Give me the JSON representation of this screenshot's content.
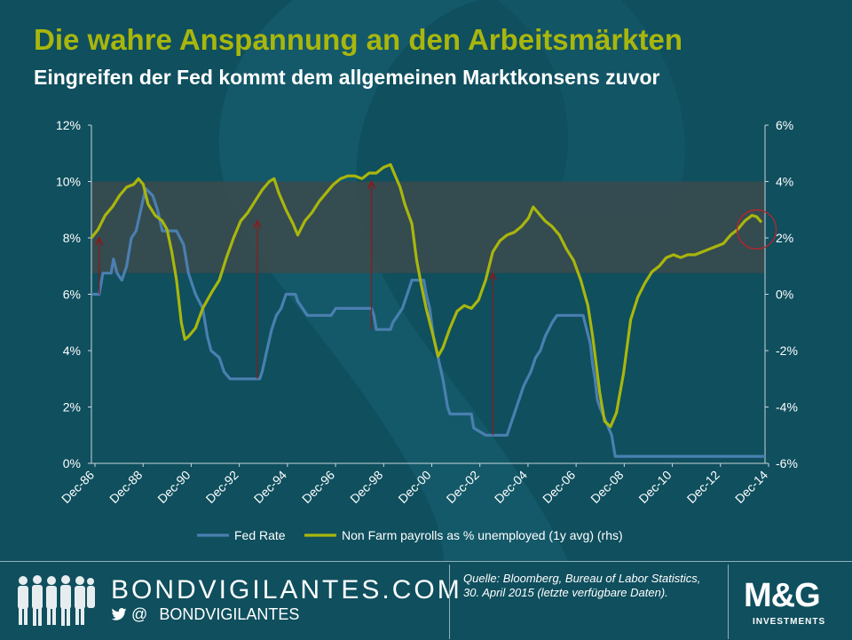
{
  "header": {
    "title": "Die wahre Anspannung an den Arbeitsmärkten",
    "subtitle": "Eingreifen der Fed kommt dem allgemeinen Marktkonsens zuvor"
  },
  "footer": {
    "brand": "BONDVIGILANTES.COM",
    "social_symbol": "@",
    "social_handle": "BONDVIGILANTES",
    "source": "Quelle: Bloomberg, Bureau of Labor Statistics, 30. April 2015 (letzte verfügbare Daten).",
    "logo": "M&G",
    "logo_sub": "INVESTMENTS"
  },
  "colors": {
    "background": "#0f4f5e",
    "fed_rate": "#4a7fb0",
    "payrolls": "#a9b60c",
    "band": "#3b4a4e",
    "arrow": "#8b1a1a",
    "circle": "#c0222a"
  },
  "chart_data": {
    "type": "line",
    "x_tick_labels": [
      "Dec-86",
      "Dec-88",
      "Dec-90",
      "Dec-92",
      "Dec-94",
      "Dec-96",
      "Dec-98",
      "Dec-00",
      "Dec-02",
      "Dec-04",
      "Dec-06",
      "Dec-08",
      "Dec-10",
      "Dec-12",
      "Dec-14"
    ],
    "x_range": [
      1986.92,
      2015.25
    ],
    "y_left": {
      "range": [
        0,
        12
      ],
      "ticks": [
        "0%",
        "2%",
        "4%",
        "6%",
        "8%",
        "10%",
        "12%"
      ]
    },
    "y_right": {
      "range": [
        -6,
        6
      ],
      "ticks": [
        "-6%",
        "-4%",
        "-2%",
        "0%",
        "2%",
        "4%",
        "6%"
      ]
    },
    "band_right_axis": [
      0.75,
      4.0
    ],
    "legend": [
      "Fed Rate",
      "Non Farm payrolls as % unemployed (1y avg) (rhs)"
    ],
    "legend_position": "bottom",
    "series": [
      {
        "name": "Fed Rate",
        "axis": "left",
        "points": [
          [
            1986.92,
            6.0
          ],
          [
            1987.25,
            6.0
          ],
          [
            1987.4,
            6.75
          ],
          [
            1987.75,
            6.75
          ],
          [
            1987.85,
            7.25
          ],
          [
            1988.0,
            6.75
          ],
          [
            1988.2,
            6.5
          ],
          [
            1988.4,
            7.0
          ],
          [
            1988.6,
            8.0
          ],
          [
            1988.8,
            8.25
          ],
          [
            1989.0,
            9.0
          ],
          [
            1989.2,
            9.75
          ],
          [
            1989.5,
            9.5
          ],
          [
            1989.7,
            9.0
          ],
          [
            1989.9,
            8.25
          ],
          [
            1990.5,
            8.25
          ],
          [
            1990.8,
            7.75
          ],
          [
            1991.0,
            6.75
          ],
          [
            1991.3,
            6.0
          ],
          [
            1991.6,
            5.5
          ],
          [
            1991.8,
            4.5
          ],
          [
            1991.95,
            4.0
          ],
          [
            1992.3,
            3.75
          ],
          [
            1992.5,
            3.25
          ],
          [
            1992.75,
            3.0
          ],
          [
            1993.0,
            3.0
          ],
          [
            1994.0,
            3.0
          ],
          [
            1994.1,
            3.25
          ],
          [
            1994.3,
            4.0
          ],
          [
            1994.5,
            4.75
          ],
          [
            1994.7,
            5.25
          ],
          [
            1994.9,
            5.5
          ],
          [
            1995.1,
            6.0
          ],
          [
            1995.5,
            6.0
          ],
          [
            1995.6,
            5.75
          ],
          [
            1996.0,
            5.25
          ],
          [
            1997.0,
            5.25
          ],
          [
            1997.2,
            5.5
          ],
          [
            1998.7,
            5.5
          ],
          [
            1998.8,
            5.25
          ],
          [
            1998.9,
            4.75
          ],
          [
            1999.5,
            4.75
          ],
          [
            1999.6,
            5.0
          ],
          [
            1999.8,
            5.25
          ],
          [
            2000.0,
            5.5
          ],
          [
            2000.2,
            6.0
          ],
          [
            2000.4,
            6.5
          ],
          [
            2000.9,
            6.5
          ],
          [
            2001.0,
            6.0
          ],
          [
            2001.15,
            5.5
          ],
          [
            2001.3,
            4.5
          ],
          [
            2001.5,
            3.75
          ],
          [
            2001.7,
            3.0
          ],
          [
            2001.8,
            2.5
          ],
          [
            2001.9,
            2.0
          ],
          [
            2002.0,
            1.75
          ],
          [
            2002.9,
            1.75
          ],
          [
            2003.0,
            1.25
          ],
          [
            2003.5,
            1.0
          ],
          [
            2004.4,
            1.0
          ],
          [
            2004.5,
            1.25
          ],
          [
            2004.7,
            1.75
          ],
          [
            2004.9,
            2.25
          ],
          [
            2005.1,
            2.75
          ],
          [
            2005.4,
            3.25
          ],
          [
            2005.6,
            3.75
          ],
          [
            2005.8,
            4.0
          ],
          [
            2006.0,
            4.5
          ],
          [
            2006.3,
            5.0
          ],
          [
            2006.5,
            5.25
          ],
          [
            2007.6,
            5.25
          ],
          [
            2007.75,
            4.75
          ],
          [
            2007.9,
            4.25
          ],
          [
            2008.0,
            3.5
          ],
          [
            2008.1,
            3.0
          ],
          [
            2008.2,
            2.25
          ],
          [
            2008.3,
            2.0
          ],
          [
            2008.8,
            1.0
          ],
          [
            2008.95,
            0.25
          ],
          [
            2015.25,
            0.25
          ]
        ]
      },
      {
        "name": "Non Farm payrolls as % unemployed (1y avg) (rhs)",
        "axis": "right",
        "points": [
          [
            1986.92,
            2.0
          ],
          [
            1987.2,
            2.3
          ],
          [
            1987.5,
            2.8
          ],
          [
            1987.8,
            3.1
          ],
          [
            1988.1,
            3.5
          ],
          [
            1988.4,
            3.8
          ],
          [
            1988.7,
            3.9
          ],
          [
            1988.9,
            4.1
          ],
          [
            1989.1,
            3.9
          ],
          [
            1989.3,
            3.2
          ],
          [
            1989.6,
            2.8
          ],
          [
            1989.9,
            2.6
          ],
          [
            1990.1,
            2.3
          ],
          [
            1990.3,
            1.5
          ],
          [
            1990.5,
            0.5
          ],
          [
            1990.7,
            -1.0
          ],
          [
            1990.85,
            -1.6
          ],
          [
            1991.0,
            -1.5
          ],
          [
            1991.3,
            -1.2
          ],
          [
            1991.6,
            -0.5
          ],
          [
            1992.0,
            0.1
          ],
          [
            1992.3,
            0.5
          ],
          [
            1992.6,
            1.3
          ],
          [
            1992.9,
            2.0
          ],
          [
            1993.2,
            2.6
          ],
          [
            1993.5,
            2.9
          ],
          [
            1993.8,
            3.3
          ],
          [
            1994.1,
            3.7
          ],
          [
            1994.4,
            4.0
          ],
          [
            1994.6,
            4.1
          ],
          [
            1994.8,
            3.6
          ],
          [
            1995.1,
            3.0
          ],
          [
            1995.4,
            2.5
          ],
          [
            1995.6,
            2.1
          ],
          [
            1995.9,
            2.6
          ],
          [
            1996.2,
            2.9
          ],
          [
            1996.5,
            3.3
          ],
          [
            1996.8,
            3.6
          ],
          [
            1997.1,
            3.9
          ],
          [
            1997.4,
            4.1
          ],
          [
            1997.7,
            4.2
          ],
          [
            1998.0,
            4.2
          ],
          [
            1998.3,
            4.1
          ],
          [
            1998.6,
            4.3
          ],
          [
            1998.9,
            4.3
          ],
          [
            1999.2,
            4.5
          ],
          [
            1999.5,
            4.6
          ],
          [
            1999.7,
            4.2
          ],
          [
            1999.9,
            3.8
          ],
          [
            2000.1,
            3.2
          ],
          [
            2000.4,
            2.5
          ],
          [
            2000.6,
            1.2
          ],
          [
            2000.8,
            0.3
          ],
          [
            2001.0,
            -0.5
          ],
          [
            2001.3,
            -1.5
          ],
          [
            2001.5,
            -2.2
          ],
          [
            2001.7,
            -1.9
          ],
          [
            2002.0,
            -1.2
          ],
          [
            2002.3,
            -0.6
          ],
          [
            2002.6,
            -0.4
          ],
          [
            2002.9,
            -0.5
          ],
          [
            2003.2,
            -0.2
          ],
          [
            2003.5,
            0.5
          ],
          [
            2003.8,
            1.5
          ],
          [
            2004.1,
            1.9
          ],
          [
            2004.4,
            2.1
          ],
          [
            2004.7,
            2.2
          ],
          [
            2005.0,
            2.4
          ],
          [
            2005.3,
            2.7
          ],
          [
            2005.5,
            3.1
          ],
          [
            2005.7,
            2.9
          ],
          [
            2006.0,
            2.6
          ],
          [
            2006.3,
            2.4
          ],
          [
            2006.6,
            2.1
          ],
          [
            2006.9,
            1.6
          ],
          [
            2007.2,
            1.2
          ],
          [
            2007.5,
            0.5
          ],
          [
            2007.8,
            -0.4
          ],
          [
            2008.0,
            -1.5
          ],
          [
            2008.3,
            -3.5
          ],
          [
            2008.5,
            -4.5
          ],
          [
            2008.75,
            -4.7
          ],
          [
            2009.0,
            -4.2
          ],
          [
            2009.3,
            -2.8
          ],
          [
            2009.6,
            -0.9
          ],
          [
            2009.9,
            -0.1
          ],
          [
            2010.2,
            0.4
          ],
          [
            2010.5,
            0.8
          ],
          [
            2010.8,
            1.0
          ],
          [
            2011.1,
            1.3
          ],
          [
            2011.4,
            1.4
          ],
          [
            2011.7,
            1.3
          ],
          [
            2012.0,
            1.4
          ],
          [
            2012.3,
            1.4
          ],
          [
            2012.6,
            1.5
          ],
          [
            2012.9,
            1.6
          ],
          [
            2013.2,
            1.7
          ],
          [
            2013.5,
            1.8
          ],
          [
            2013.8,
            2.1
          ],
          [
            2014.1,
            2.3
          ],
          [
            2014.4,
            2.6
          ],
          [
            2014.7,
            2.8
          ],
          [
            2014.9,
            2.75
          ],
          [
            2015.1,
            2.55
          ]
        ]
      }
    ],
    "arrows_fed_rate_pct": [
      [
        1987.25,
        6.0,
        8.0
      ],
      [
        1993.9,
        3.0,
        8.6
      ],
      [
        1998.7,
        4.75,
        10.0
      ],
      [
        2003.8,
        1.0,
        6.75
      ]
    ],
    "highlight_circle": {
      "x": 2014.9,
      "y_rhs": 2.3
    }
  }
}
